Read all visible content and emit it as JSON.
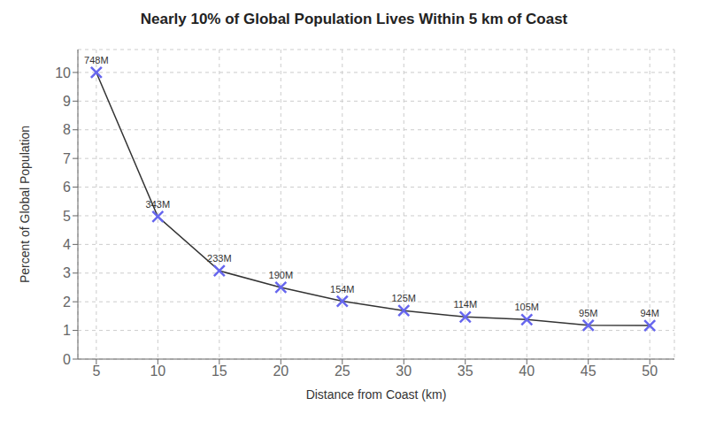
{
  "chart_data": {
    "type": "line",
    "title": "Nearly 10% of Global Population Lives Within 5 km of Coast",
    "x_label": "Distance from Coast (km)",
    "y_label": "Percent of Global Population",
    "x": [
      5,
      10,
      15,
      20,
      25,
      30,
      35,
      40,
      45,
      50
    ],
    "series": [
      {
        "type": "line",
        "color": "#333333",
        "values": [
          10.0,
          4.97,
          3.08,
          2.5,
          2.02,
          1.69,
          1.47,
          1.38,
          1.18,
          1.17
        ]
      },
      {
        "type": "scatter",
        "marker": "x",
        "color": "#6666ee",
        "values": [
          10.0,
          4.97,
          3.08,
          2.5,
          2.02,
          1.69,
          1.47,
          1.38,
          1.18,
          1.17
        ]
      }
    ],
    "annotations": [
      {
        "x": 5,
        "y": 10.0,
        "text": "748M"
      },
      {
        "x": 10,
        "y": 4.97,
        "text": "343M"
      },
      {
        "x": 15,
        "y": 3.08,
        "text": "233M"
      },
      {
        "x": 20,
        "y": 2.5,
        "text": "190M"
      },
      {
        "x": 25,
        "y": 2.02,
        "text": "154M"
      },
      {
        "x": 30,
        "y": 1.69,
        "text": "125M"
      },
      {
        "x": 35,
        "y": 1.47,
        "text": "114M"
      },
      {
        "x": 40,
        "y": 1.38,
        "text": "105M"
      },
      {
        "x": 45,
        "y": 1.18,
        "text": "95M"
      },
      {
        "x": 50,
        "y": 1.17,
        "text": "94M"
      }
    ],
    "xlim": [
      3.5,
      52
    ],
    "ylim": [
      0,
      10.8
    ],
    "xticks": [
      5,
      10,
      15,
      20,
      25,
      30,
      35,
      40,
      45,
      50
    ],
    "yticks": [
      0,
      1,
      2,
      3,
      4,
      5,
      6,
      7,
      8,
      9,
      10
    ],
    "grid": true
  }
}
